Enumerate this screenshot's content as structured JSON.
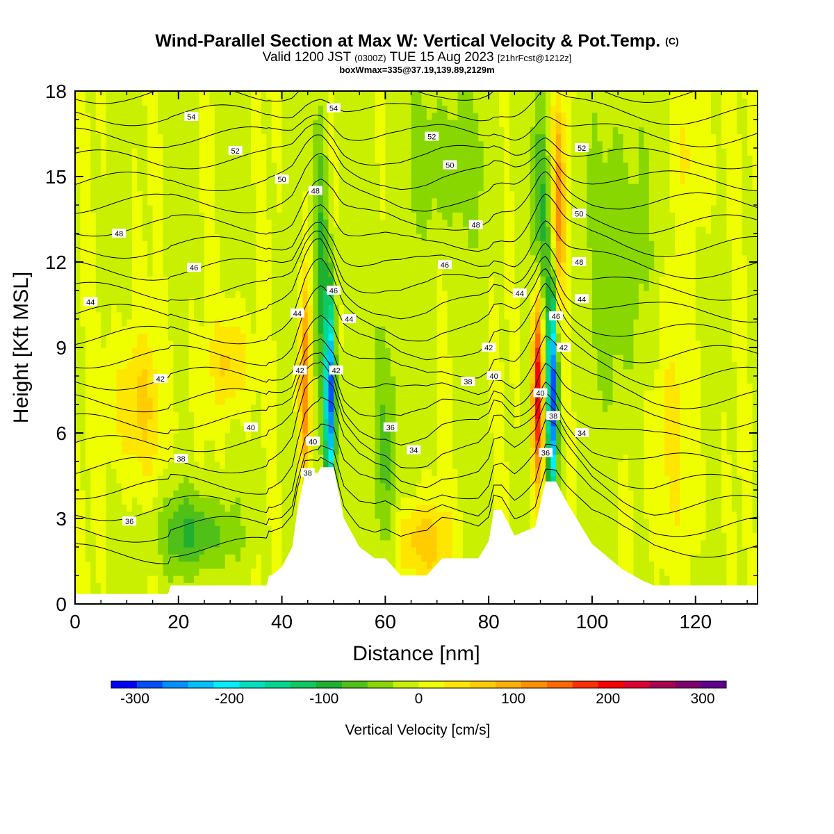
{
  "header": {
    "title": "Wind-Parallel Section at Max W: Vertical Velocity & Pot.Temp.",
    "title_tag": "(C)",
    "valid_main": "Valid 1200 JST",
    "valid_small": "(0300Z)",
    "valid_date": "TUE 15 Aug 2023",
    "valid_fcst": "[21hrFcst@1212z]",
    "box_info": "boxWmax=335@37.19,139.89,2129m"
  },
  "chart_data": {
    "type": "heatmap",
    "xlabel": "Distance [nm]",
    "ylabel": "Height [Kft MSL]",
    "xlim": [
      0,
      132
    ],
    "ylim": [
      0,
      18
    ],
    "x_ticks": [
      "0",
      "20",
      "40",
      "60",
      "80",
      "100",
      "120"
    ],
    "y_ticks": [
      "0",
      "3",
      "6",
      "9",
      "12",
      "15",
      "18"
    ],
    "colorbar": {
      "label": "Vertical Velocity [cm/s]",
      "tick_labels": [
        "-300",
        "-200",
        "-100",
        "0",
        "100",
        "200",
        "300"
      ],
      "range": [
        -325,
        325
      ],
      "colors": [
        "#0000ff",
        "#0050ff",
        "#0090ff",
        "#00c0ff",
        "#00f0ff",
        "#00e0c0",
        "#00d890",
        "#10c860",
        "#20b030",
        "#50c018",
        "#88d800",
        "#c8f000",
        "#f0ff00",
        "#ffe600",
        "#ffcc00",
        "#ffb000",
        "#ff9000",
        "#ff6800",
        "#ff3000",
        "#ff0000",
        "#dd0030",
        "#aa0050",
        "#800070",
        "#600090"
      ]
    },
    "terrain_kft": [
      [
        0,
        0.35
      ],
      [
        18,
        0.35
      ],
      [
        18.5,
        0.65
      ],
      [
        37,
        0.65
      ],
      [
        37.5,
        1.0
      ],
      [
        38,
        1.0
      ],
      [
        40,
        1.3
      ],
      [
        42,
        2.0
      ],
      [
        43,
        3.3
      ],
      [
        44.5,
        4.6
      ],
      [
        47,
        4.6
      ],
      [
        47.5,
        4.8
      ],
      [
        50,
        4.8
      ],
      [
        52,
        3.0
      ],
      [
        55,
        2.0
      ],
      [
        58,
        1.6
      ],
      [
        60,
        1.6
      ],
      [
        63,
        1.0
      ],
      [
        68,
        1.0
      ],
      [
        71,
        1.6
      ],
      [
        78,
        1.6
      ],
      [
        80,
        2.2
      ],
      [
        81,
        3.3
      ],
      [
        82.5,
        3.3
      ],
      [
        85,
        2.4
      ],
      [
        89,
        2.7
      ],
      [
        91,
        4.3
      ],
      [
        93,
        4.3
      ],
      [
        95,
        3.6
      ],
      [
        100,
        2.1
      ],
      [
        106,
        1.2
      ],
      [
        110,
        0.8
      ],
      [
        112,
        0.65
      ],
      [
        132,
        0.65
      ]
    ],
    "w_features": [
      {
        "x": 44.5,
        "z": 7.8,
        "sx": 0.8,
        "sz": 2.6,
        "w": 150
      },
      {
        "x": 49.3,
        "z": 7.2,
        "sx": 0.7,
        "sz": 2.6,
        "w": -280
      },
      {
        "x": 47.5,
        "z": 11.5,
        "sx": 1.0,
        "sz": 4.0,
        "w": -90
      },
      {
        "x": 89.5,
        "z": 7.8,
        "sx": 0.8,
        "sz": 2.6,
        "w": 250
      },
      {
        "x": 92.3,
        "z": 7.2,
        "sx": 0.7,
        "sz": 2.6,
        "w": -300
      },
      {
        "x": 93.5,
        "z": 14.0,
        "sx": 0.9,
        "sz": 2.5,
        "w": 120
      },
      {
        "x": 90.0,
        "z": 12.5,
        "sx": 1.2,
        "sz": 3.2,
        "w": -100
      },
      {
        "x": 12.0,
        "z": 7.0,
        "sx": 4.0,
        "sz": 1.8,
        "w": 60
      },
      {
        "x": 30.0,
        "z": 8.5,
        "sx": 2.5,
        "sz": 1.2,
        "w": 70
      },
      {
        "x": 23.0,
        "z": 2.5,
        "sx": 5.0,
        "sz": 1.0,
        "w": -80
      },
      {
        "x": 67.0,
        "z": 2.2,
        "sx": 4.0,
        "sz": 1.0,
        "w": 80
      },
      {
        "x": 60.0,
        "z": 5.0,
        "sx": 2.0,
        "sz": 4.0,
        "w": -60
      },
      {
        "x": 105.0,
        "z": 12.0,
        "sx": 4.0,
        "sz": 4.0,
        "w": -50
      },
      {
        "x": 72.0,
        "z": 15.5,
        "sx": 6.0,
        "sz": 2.0,
        "w": -45
      },
      {
        "x": 115.0,
        "z": 6.0,
        "sx": 4.0,
        "sz": 3.0,
        "w": 35
      },
      {
        "x": 120.0,
        "z": 16.0,
        "sx": 3.0,
        "sz": 2.0,
        "w": 30
      }
    ],
    "theta_levels": [
      34,
      36,
      38,
      40,
      42,
      44,
      46,
      48,
      50,
      52,
      54
    ],
    "contour_labels": [
      {
        "text": "54",
        "x": 22.5,
        "z": 17.1
      },
      {
        "text": "52",
        "x": 31.0,
        "z": 15.9
      },
      {
        "text": "50",
        "x": 40.0,
        "z": 14.9
      },
      {
        "text": "48",
        "x": 46.5,
        "z": 14.5
      },
      {
        "text": "54",
        "x": 50.0,
        "z": 17.4
      },
      {
        "text": "48",
        "x": 8.5,
        "z": 13.0
      },
      {
        "text": "46",
        "x": 23.0,
        "z": 11.8
      },
      {
        "text": "44",
        "x": 3.0,
        "z": 10.6
      },
      {
        "text": "44",
        "x": 43.0,
        "z": 10.2
      },
      {
        "text": "46",
        "x": 50.0,
        "z": 11.0
      },
      {
        "text": "44",
        "x": 53.0,
        "z": 10.0
      },
      {
        "text": "42",
        "x": 16.5,
        "z": 7.9
      },
      {
        "text": "42",
        "x": 43.5,
        "z": 8.2
      },
      {
        "text": "42",
        "x": 50.5,
        "z": 8.2
      },
      {
        "text": "40",
        "x": 34.0,
        "z": 6.2
      },
      {
        "text": "40",
        "x": 46.0,
        "z": 5.7
      },
      {
        "text": "38",
        "x": 20.5,
        "z": 5.1
      },
      {
        "text": "38",
        "x": 45.0,
        "z": 4.6
      },
      {
        "text": "36",
        "x": 10.5,
        "z": 2.9
      },
      {
        "text": "52",
        "x": 69.0,
        "z": 16.4
      },
      {
        "text": "50",
        "x": 72.5,
        "z": 15.4
      },
      {
        "text": "48",
        "x": 77.5,
        "z": 13.3
      },
      {
        "text": "46",
        "x": 71.5,
        "z": 11.9
      },
      {
        "text": "44",
        "x": 86.0,
        "z": 10.9
      },
      {
        "text": "42",
        "x": 80.0,
        "z": 9.0
      },
      {
        "text": "40",
        "x": 81.0,
        "z": 8.0
      },
      {
        "text": "38",
        "x": 76.0,
        "z": 7.8
      },
      {
        "text": "36",
        "x": 61.0,
        "z": 6.2
      },
      {
        "text": "34",
        "x": 65.5,
        "z": 5.4
      },
      {
        "text": "40",
        "x": 90.0,
        "z": 7.4
      },
      {
        "text": "38",
        "x": 92.5,
        "z": 6.6
      },
      {
        "text": "36",
        "x": 91.0,
        "z": 5.3
      },
      {
        "text": "34",
        "x": 98.0,
        "z": 6.0
      },
      {
        "text": "46",
        "x": 93.0,
        "z": 10.1
      },
      {
        "text": "42",
        "x": 94.5,
        "z": 9.0
      },
      {
        "text": "44",
        "x": 98.0,
        "z": 10.7
      },
      {
        "text": "48",
        "x": 97.5,
        "z": 12.0
      },
      {
        "text": "50",
        "x": 97.5,
        "z": 13.7
      },
      {
        "text": "52",
        "x": 98.0,
        "z": 16.0
      }
    ]
  }
}
